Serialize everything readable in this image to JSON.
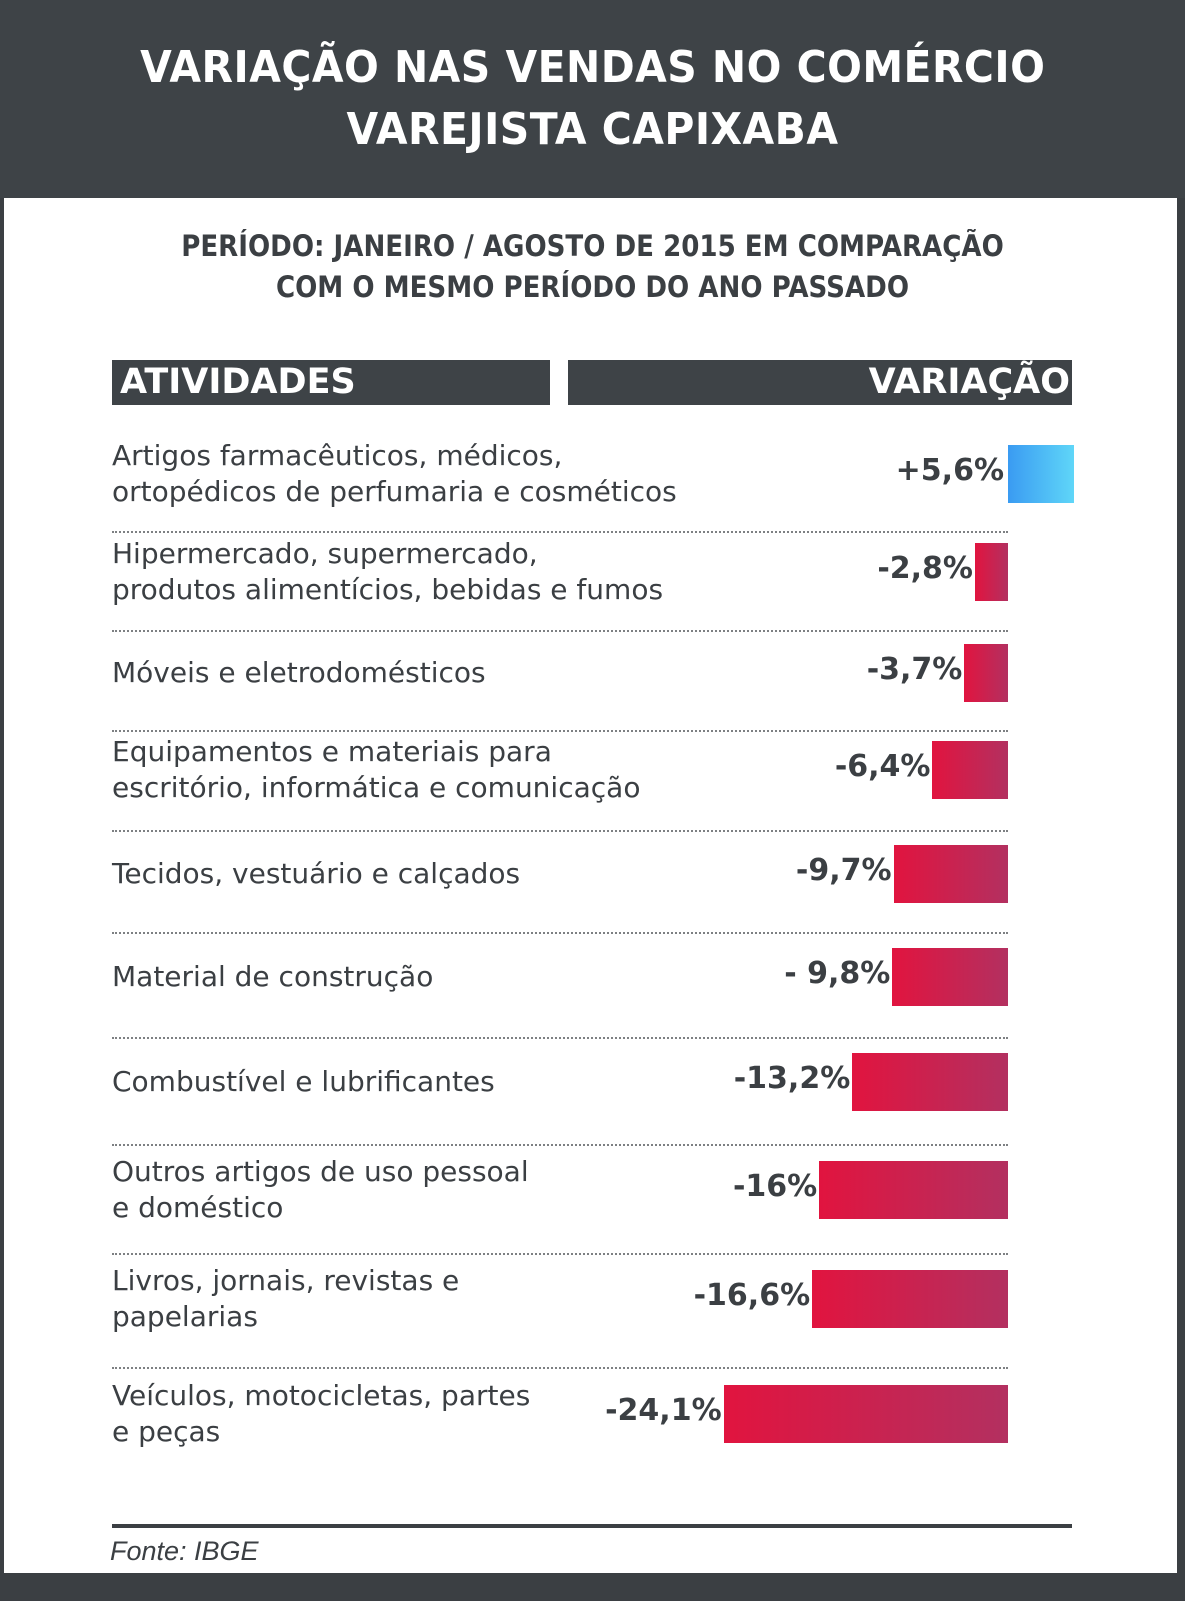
{
  "title_lines": [
    "VARIAÇÃO NAS VENDAS NO COMÉRCIO",
    "VAREJISTA CAPIXABA"
  ],
  "subtitle_lines": [
    "PERÍODO: JANEIRO / AGOSTO DE 2015 EM COMPARAÇÃO",
    "COM O MESMO PERÍODO DO ANO PASSADO"
  ],
  "columns": {
    "left": "ATIVIDADES",
    "right": "VARIAÇÃO"
  },
  "source": "Fonte: IBGE",
  "colors": {
    "negative": "#e1143f",
    "negative_end": "#b33060",
    "positive": "#3a9bf2",
    "positive_end": "#5fd6f8",
    "dark": "#3e4347"
  },
  "chart_data": {
    "type": "bar",
    "orientation": "horizontal",
    "title": "VARIAÇÃO NAS VENDAS NO COMÉRCIO VAREJISTA CAPIXABA",
    "subtitle": "PERÍODO: JANEIRO / AGOSTO DE 2015 EM COMPARAÇÃO COM O MESMO PERÍODO DO ANO PASSADO",
    "unit": "%",
    "items": [
      {
        "label_lines": [
          "Artigos farmacêuticos, médicos,",
          "ortopédicos de perfumaria e cosméticos"
        ],
        "value": 5.6,
        "value_label": "+5,6%"
      },
      {
        "label_lines": [
          "Hipermercado, supermercado,",
          "produtos alimentícios, bebidas e fumos"
        ],
        "value": -2.8,
        "value_label": "-2,8%"
      },
      {
        "label_lines": [
          "Móveis e eletrodomésticos"
        ],
        "value": -3.7,
        "value_label": "-3,7%"
      },
      {
        "label_lines": [
          "Equipamentos e materiais para",
          "escritório, informática e comunicação"
        ],
        "value": -6.4,
        "value_label": "-6,4%"
      },
      {
        "label_lines": [
          "Tecidos, vestuário e calçados"
        ],
        "value": -9.7,
        "value_label": "-9,7%"
      },
      {
        "label_lines": [
          "Material de construção"
        ],
        "value": -9.8,
        "value_label": "- 9,8%"
      },
      {
        "label_lines": [
          "Combustível e lubrificantes"
        ],
        "value": -13.2,
        "value_label": "-13,2%"
      },
      {
        "label_lines": [
          "Outros artigos de uso pessoal",
          "e doméstico"
        ],
        "value": -16,
        "value_label": "-16%"
      },
      {
        "label_lines": [
          "Livros, jornais, revistas e",
          "papelarias"
        ],
        "value": -16.6,
        "value_label": "-16,6%"
      },
      {
        "label_lines": [
          "Veículos, motocicletas, partes",
          "e peças"
        ],
        "value": -24.1,
        "value_label": "-24,1%"
      }
    ]
  }
}
